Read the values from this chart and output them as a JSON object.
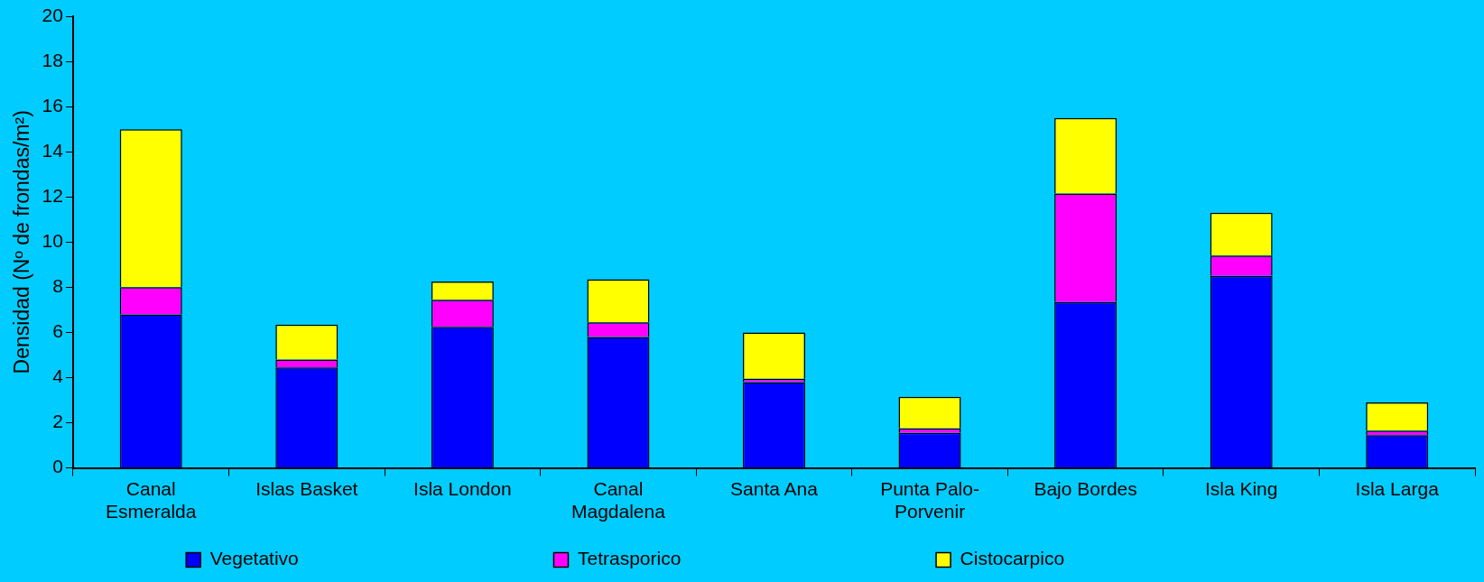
{
  "chart_data": {
    "type": "bar",
    "stacked": true,
    "ylabel": "Densidad (Nº de frondas/m²)",
    "categories": [
      "Canal Esmeralda",
      "Islas Basket",
      "Isla London",
      "Canal Magdalena",
      "Santa Ana",
      "Punta Palo-Porvenir",
      "Bajo Bordes",
      "Isla King",
      "Isla Larga"
    ],
    "series": [
      {
        "name": "Vegetativo",
        "color": "#0000ff",
        "values": [
          6.8,
          4.45,
          6.25,
          5.8,
          3.8,
          1.55,
          7.35,
          8.5,
          1.45
        ]
      },
      {
        "name": "Tetrasporico",
        "color": "#ff00ff",
        "values": [
          1.2,
          0.35,
          1.2,
          0.65,
          0.15,
          0.2,
          4.8,
          0.9,
          0.2
        ]
      },
      {
        "name": "Cistocarpico",
        "color": "#ffff00",
        "values": [
          7.0,
          1.55,
          0.8,
          1.9,
          2.05,
          1.4,
          3.35,
          1.9,
          1.25
        ]
      }
    ],
    "ylim": [
      0,
      20
    ],
    "yticks": [
      0,
      2,
      4,
      6,
      8,
      10,
      12,
      14,
      16,
      18,
      20
    ],
    "grid": false,
    "legend": "bottom"
  }
}
